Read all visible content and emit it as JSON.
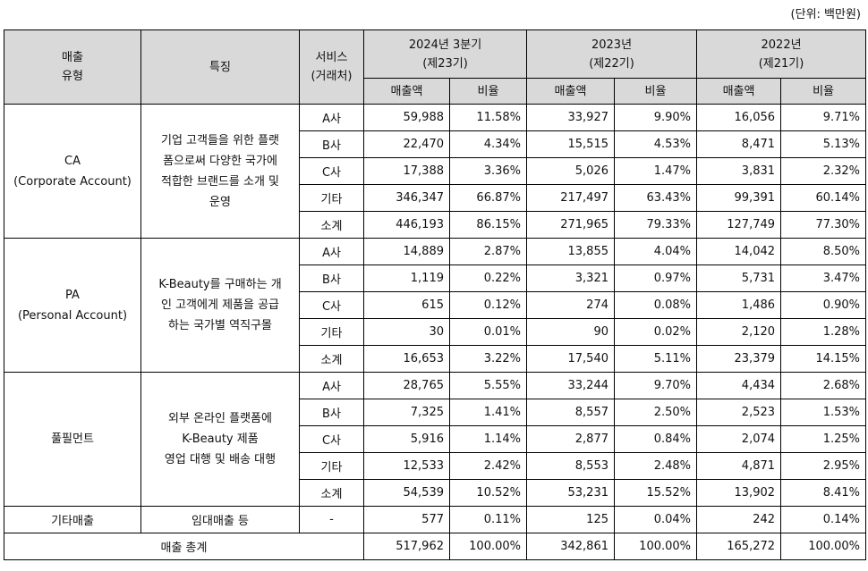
{
  "unit_note": "(단위: 백만원)",
  "header": {
    "type_line1": "매출",
    "type_line2": "유형",
    "feature": "특징",
    "service_line1": "서비스",
    "service_line2": "(거래처)",
    "periods": [
      {
        "line1": "2024년 3분기",
        "line2": "(제23기)"
      },
      {
        "line1": "2023년",
        "line2": "(제22기)"
      },
      {
        "line1": "2022년",
        "line2": "(제21기)"
      }
    ],
    "sales": "매출액",
    "ratio": "비율"
  },
  "groups": [
    {
      "name_line1": "CA",
      "name_line2": "(Corporate Account)",
      "feature_lines": [
        "기업 고객들을 위한 플랫",
        "폼으로써 다양한 국가에",
        "적합한 브랜드를 소개 및",
        "운영"
      ],
      "rows": [
        {
          "svc": "A사",
          "v": [
            "59,988",
            "11.58%",
            "33,927",
            "9.90%",
            "16,056",
            "9.71%"
          ]
        },
        {
          "svc": "B사",
          "v": [
            "22,470",
            "4.34%",
            "15,515",
            "4.53%",
            "8,471",
            "5.13%"
          ]
        },
        {
          "svc": "C사",
          "v": [
            "17,388",
            "3.36%",
            "5,026",
            "1.47%",
            "3,831",
            "2.32%"
          ]
        },
        {
          "svc": "기타",
          "v": [
            "346,347",
            "66.87%",
            "217,497",
            "63.43%",
            "99,391",
            "60.14%"
          ]
        },
        {
          "svc": "소계",
          "v": [
            "446,193",
            "86.15%",
            "271,965",
            "79.33%",
            "127,749",
            "77.30%"
          ]
        }
      ]
    },
    {
      "name_line1": "PA",
      "name_line2": "(Personal Account)",
      "feature_lines": [
        "K-Beauty를 구매하는 개",
        "인 고객에게 제품을 공급",
        "하는 국가별 역직구몰"
      ],
      "rows": [
        {
          "svc": "A사",
          "v": [
            "14,889",
            "2.87%",
            "13,855",
            "4.04%",
            "14,042",
            "8.50%"
          ]
        },
        {
          "svc": "B사",
          "v": [
            "1,119",
            "0.22%",
            "3,321",
            "0.97%",
            "5,731",
            "3.47%"
          ]
        },
        {
          "svc": "C사",
          "v": [
            "615",
            "0.12%",
            "274",
            "0.08%",
            "1,486",
            "0.90%"
          ]
        },
        {
          "svc": "기타",
          "v": [
            "30",
            "0.01%",
            "90",
            "0.02%",
            "2,120",
            "1.28%"
          ]
        },
        {
          "svc": "소계",
          "v": [
            "16,653",
            "3.22%",
            "17,540",
            "5.11%",
            "23,379",
            "14.15%"
          ]
        }
      ]
    },
    {
      "name_line1": "풀필먼트",
      "name_line2": "",
      "feature_lines": [
        "외부 온라인 플랫폼에",
        "K-Beauty 제품",
        "영업 대행 및 배송 대행"
      ],
      "rows": [
        {
          "svc": "A사",
          "v": [
            "28,765",
            "5.55%",
            "33,244",
            "9.70%",
            "4,434",
            "2.68%"
          ]
        },
        {
          "svc": "B사",
          "v": [
            "7,325",
            "1.41%",
            "8,557",
            "2.50%",
            "2,523",
            "1.53%"
          ]
        },
        {
          "svc": "C사",
          "v": [
            "5,916",
            "1.14%",
            "2,877",
            "0.84%",
            "2,074",
            "1.25%"
          ]
        },
        {
          "svc": "기타",
          "v": [
            "12,533",
            "2.42%",
            "8,553",
            "2.48%",
            "4,871",
            "2.95%"
          ]
        },
        {
          "svc": "소계",
          "v": [
            "54,539",
            "10.52%",
            "53,231",
            "15.52%",
            "13,902",
            "8.41%"
          ]
        }
      ]
    }
  ],
  "other_row": {
    "type": "기타매출",
    "feature": "임대매출 등",
    "svc": "-",
    "v": [
      "577",
      "0.11%",
      "125",
      "0.04%",
      "242",
      "0.14%"
    ]
  },
  "total_row": {
    "label": "매출 총계",
    "v": [
      "517,962",
      "100.00%",
      "342,861",
      "100.00%",
      "165,272",
      "100.00%"
    ]
  }
}
